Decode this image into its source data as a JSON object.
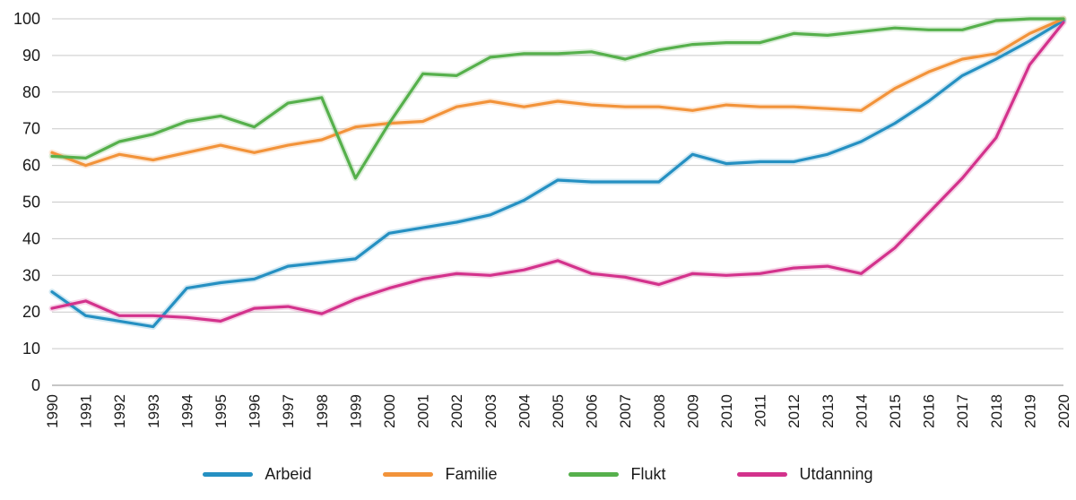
{
  "chart_data": {
    "type": "line",
    "title": "",
    "xlabel": "",
    "ylabel": "",
    "ylim": [
      0,
      100
    ],
    "ytick_step": 10,
    "grid": "horizontal",
    "legend_position": "bottom",
    "x": [
      1990,
      1991,
      1992,
      1993,
      1994,
      1995,
      1996,
      1997,
      1998,
      1999,
      2000,
      2001,
      2002,
      2003,
      2004,
      2005,
      2006,
      2007,
      2008,
      2009,
      2010,
      2011,
      2012,
      2013,
      2014,
      2015,
      2016,
      2017,
      2018,
      2019,
      2020
    ],
    "series": [
      {
        "name": "Arbeid",
        "color": "#2590c2",
        "values": [
          25.5,
          19,
          17.5,
          16,
          26.5,
          28,
          29,
          32.5,
          33.5,
          34.5,
          41.5,
          43,
          44.5,
          46.5,
          50.5,
          56,
          55.5,
          55.5,
          55.5,
          63,
          60.5,
          61,
          61,
          63,
          66.5,
          71.5,
          77.5,
          84.5,
          89,
          94,
          99.5
        ]
      },
      {
        "name": "Familie",
        "color": "#f2933a",
        "values": [
          63.5,
          60,
          63,
          61.5,
          63.5,
          65.5,
          63.5,
          65.5,
          67,
          70.5,
          71.5,
          72,
          76,
          77.5,
          76,
          77.5,
          76.5,
          76,
          76,
          75,
          76.5,
          76,
          76,
          75.5,
          75,
          81,
          85.5,
          89,
          90.5,
          96,
          100
        ]
      },
      {
        "name": "Flukt",
        "color": "#56b04c",
        "values": [
          62.5,
          62,
          66.5,
          68.5,
          72,
          73.5,
          70.5,
          77,
          78.5,
          56.5,
          71.5,
          85,
          84.5,
          89.5,
          90.5,
          90.5,
          91,
          89,
          91.5,
          93,
          93.5,
          93.5,
          96,
          95.5,
          96.5,
          97.5,
          97,
          97,
          99.5,
          100,
          100
        ]
      },
      {
        "name": "Utdanning",
        "color": "#d3328c",
        "values": [
          21,
          23,
          19,
          19,
          18.5,
          17.5,
          21,
          21.5,
          19.5,
          23.5,
          26.5,
          29,
          30.5,
          30,
          31.5,
          34,
          30.5,
          29.5,
          27.5,
          30.5,
          30,
          30.5,
          32,
          32.5,
          30.5,
          37.5,
          47,
          56.5,
          67.5,
          87.5,
          99
        ]
      }
    ]
  }
}
